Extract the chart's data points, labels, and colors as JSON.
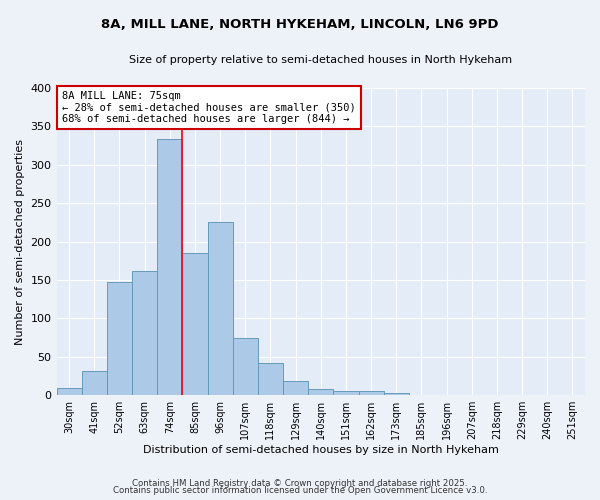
{
  "title_line1": "8A, MILL LANE, NORTH HYKEHAM, LINCOLN, LN6 9PD",
  "title_line2": "Size of property relative to semi-detached houses in North Hykeham",
  "xlabel": "Distribution of semi-detached houses by size in North Hykeham",
  "ylabel": "Number of semi-detached properties",
  "categories": [
    "30sqm",
    "41sqm",
    "52sqm",
    "63sqm",
    "74sqm",
    "85sqm",
    "96sqm",
    "107sqm",
    "118sqm",
    "129sqm",
    "140sqm",
    "151sqm",
    "162sqm",
    "173sqm",
    "185sqm",
    "196sqm",
    "207sqm",
    "218sqm",
    "229sqm",
    "240sqm",
    "251sqm"
  ],
  "bar_values": [
    10,
    32,
    147,
    162,
    333,
    185,
    225,
    75,
    42,
    18,
    8,
    6,
    5,
    3,
    0,
    0,
    0,
    0,
    0,
    0,
    0
  ],
  "bar_color": "#adc9e8",
  "bar_edge_color": "#6699bb",
  "ylim": [
    0,
    400
  ],
  "yticks": [
    0,
    50,
    100,
    150,
    200,
    250,
    300,
    350,
    400
  ],
  "red_line_x": 4.5,
  "annotation_title": "8A MILL LANE: 75sqm",
  "annotation_line1": "← 28% of semi-detached houses are smaller (350)",
  "annotation_line2": "68% of semi-detached houses are larger (844) →",
  "annotation_box_color": "#ffffff",
  "annotation_box_edge_color": "#cc0000",
  "footer_line1": "Contains HM Land Registry data © Crown copyright and database right 2025.",
  "footer_line2": "Contains public sector information licensed under the Open Government Licence v3.0.",
  "background_color": "#edf2f9",
  "plot_background_color": "#e4ecf7"
}
